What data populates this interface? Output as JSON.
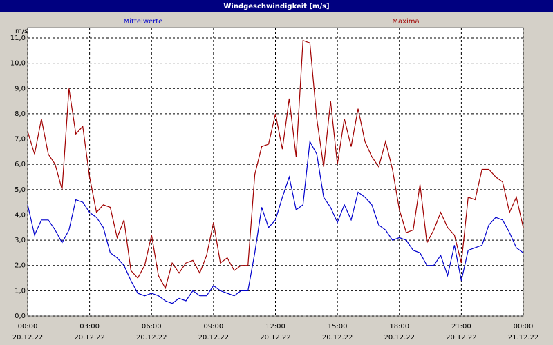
{
  "chart_data": {
    "type": "line",
    "title": "Windgeschwindigkeit [m/s]",
    "y_unit": "m/s",
    "x": [
      0,
      20,
      40,
      60,
      80,
      100,
      120,
      140,
      160,
      180,
      200,
      220,
      240,
      260,
      280,
      300,
      320,
      340,
      360,
      380,
      400,
      420,
      440,
      460,
      480,
      500,
      520,
      540,
      560,
      580,
      600,
      620,
      640,
      660,
      680,
      700,
      720,
      740,
      760,
      780,
      800,
      820,
      840,
      860,
      880,
      900,
      920,
      940,
      960,
      980,
      1000,
      1020,
      1040,
      1060,
      1080,
      1100,
      1120,
      1140,
      1160,
      1180,
      1200,
      1220,
      1240,
      1260,
      1280,
      1300,
      1320,
      1340,
      1360,
      1380,
      1400,
      1420,
      1440
    ],
    "series": [
      {
        "name": "Mittelwerte",
        "color": "#0000cc",
        "values": [
          4.4,
          3.2,
          3.8,
          3.8,
          3.4,
          2.9,
          3.4,
          4.6,
          4.5,
          4.1,
          3.9,
          3.5,
          2.5,
          2.3,
          2.0,
          1.4,
          0.9,
          0.8,
          0.9,
          0.8,
          0.6,
          0.5,
          0.7,
          0.6,
          1.0,
          0.8,
          0.8,
          1.2,
          1.0,
          0.9,
          0.8,
          1.0,
          1.0,
          2.5,
          4.3,
          3.5,
          3.8,
          4.7,
          5.5,
          4.2,
          4.4,
          6.9,
          6.4,
          4.7,
          4.3,
          3.7,
          4.4,
          3.8,
          4.9,
          4.7,
          4.4,
          3.6,
          3.4,
          3.0,
          3.1,
          3.0,
          2.6,
          2.5,
          2.0,
          2.0,
          2.4,
          1.6,
          2.8,
          1.4,
          2.6,
          2.7,
          2.8,
          3.6,
          3.9,
          3.8,
          3.3,
          2.7,
          2.5
        ]
      },
      {
        "name": "Maxima",
        "color": "#a00000",
        "values": [
          7.3,
          6.4,
          7.8,
          6.4,
          6.0,
          5.0,
          9.0,
          7.2,
          7.5,
          5.5,
          4.1,
          4.4,
          4.3,
          3.1,
          3.8,
          1.8,
          1.5,
          2.0,
          3.2,
          1.6,
          1.1,
          2.1,
          1.7,
          2.1,
          2.2,
          1.7,
          2.4,
          3.7,
          2.1,
          2.3,
          1.8,
          2.0,
          2.0,
          5.6,
          6.7,
          6.8,
          8.0,
          6.6,
          8.6,
          6.3,
          10.9,
          10.8,
          7.8,
          5.9,
          8.5,
          6.0,
          7.8,
          6.7,
          8.2,
          6.9,
          6.3,
          5.9,
          6.9,
          5.8,
          4.2,
          3.3,
          3.4,
          5.2,
          2.9,
          3.4,
          4.1,
          3.5,
          3.2,
          2.1,
          4.7,
          4.6,
          5.8,
          5.8,
          5.5,
          5.3,
          4.1,
          4.7,
          3.5
        ]
      }
    ],
    "xlim": [
      0,
      1440
    ],
    "xticks": [
      {
        "value": 0,
        "label": "00:00"
      },
      {
        "value": 180,
        "label": "03:00"
      },
      {
        "value": 360,
        "label": "06:00"
      },
      {
        "value": 540,
        "label": "09:00"
      },
      {
        "value": 720,
        "label": "12:00"
      },
      {
        "value": 900,
        "label": "15:00"
      },
      {
        "value": 1080,
        "label": "18:00"
      },
      {
        "value": 1260,
        "label": "21:00"
      },
      {
        "value": 1440,
        "label": "00:00"
      }
    ],
    "xtick_dates": [
      "20.12.22",
      "20.12.22",
      "20.12.22",
      "20.12.22",
      "20.12.22",
      "20.12.22",
      "20.12.22",
      "20.12.22",
      "21.12.22"
    ],
    "ylim": [
      0,
      11
    ],
    "yticks": [
      {
        "value": 0,
        "label": "0,0"
      },
      {
        "value": 1,
        "label": "1,0"
      },
      {
        "value": 2,
        "label": "2,0"
      },
      {
        "value": 3,
        "label": "3,0"
      },
      {
        "value": 4,
        "label": "4,0"
      },
      {
        "value": 5,
        "label": "5,0"
      },
      {
        "value": 6,
        "label": "6,0"
      },
      {
        "value": 7,
        "label": "7,0"
      },
      {
        "value": 8,
        "label": "8,0"
      },
      {
        "value": 9,
        "label": "9,0"
      },
      {
        "value": 10,
        "label": "10,0"
      },
      {
        "value": 11,
        "label": "11,0"
      }
    ],
    "grid": true
  }
}
